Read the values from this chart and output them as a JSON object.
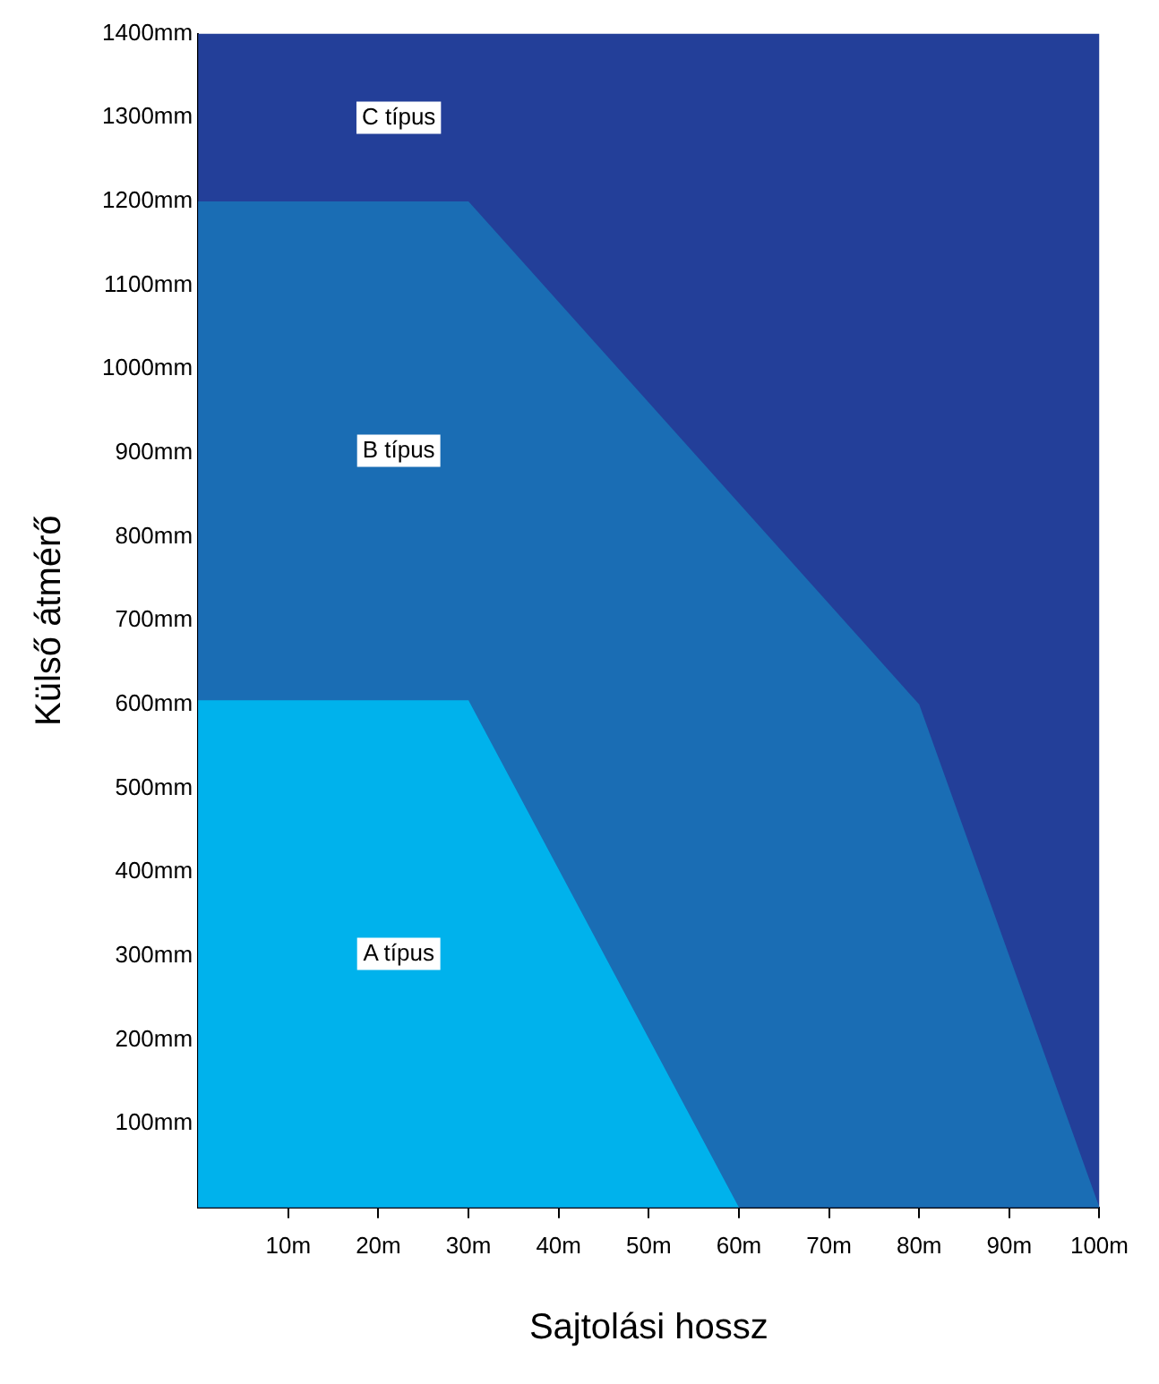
{
  "chart_data": {
    "type": "area",
    "xlabel": "Sajtolási hossz",
    "ylabel": "Külső átmérő",
    "xlim": [
      0,
      100
    ],
    "ylim": [
      0,
      1400
    ],
    "xticks": [
      {
        "value": 10,
        "label": "10m"
      },
      {
        "value": 20,
        "label": "20m"
      },
      {
        "value": 30,
        "label": "30m"
      },
      {
        "value": 40,
        "label": "40m"
      },
      {
        "value": 50,
        "label": "50m"
      },
      {
        "value": 60,
        "label": "60m"
      },
      {
        "value": 70,
        "label": "70m"
      },
      {
        "value": 80,
        "label": "80m"
      },
      {
        "value": 90,
        "label": "90m"
      },
      {
        "value": 100,
        "label": "100m"
      }
    ],
    "yticks": [
      {
        "value": 100,
        "label": "100mm"
      },
      {
        "value": 200,
        "label": "200mm"
      },
      {
        "value": 300,
        "label": "300mm"
      },
      {
        "value": 400,
        "label": "400mm"
      },
      {
        "value": 500,
        "label": "500mm"
      },
      {
        "value": 600,
        "label": "600mm"
      },
      {
        "value": 700,
        "label": "700mm"
      },
      {
        "value": 800,
        "label": "800mm"
      },
      {
        "value": 900,
        "label": "900mm"
      },
      {
        "value": 1000,
        "label": "1000mm"
      },
      {
        "value": 1100,
        "label": "1100mm"
      },
      {
        "value": 1200,
        "label": "1200mm"
      },
      {
        "value": 1300,
        "label": "1300mm"
      },
      {
        "value": 1400,
        "label": "1400mm"
      }
    ],
    "series": [
      {
        "color": "#00b2ec",
        "x": [
          0,
          30,
          60,
          100
        ],
        "values": [
          605,
          605,
          0,
          0
        ]
      },
      {
        "color": "#1a6db4",
        "x": [
          0,
          30,
          80,
          100
        ],
        "values": [
          1200,
          1200,
          600,
          0
        ]
      },
      {
        "color": "#233f99",
        "x": [
          0,
          100
        ],
        "values": [
          1400,
          1400
        ]
      }
    ],
    "annotations": [
      "A típus",
      "B típus",
      "C típus"
    ],
    "grid": false,
    "legend": false,
    "marker": "none"
  }
}
